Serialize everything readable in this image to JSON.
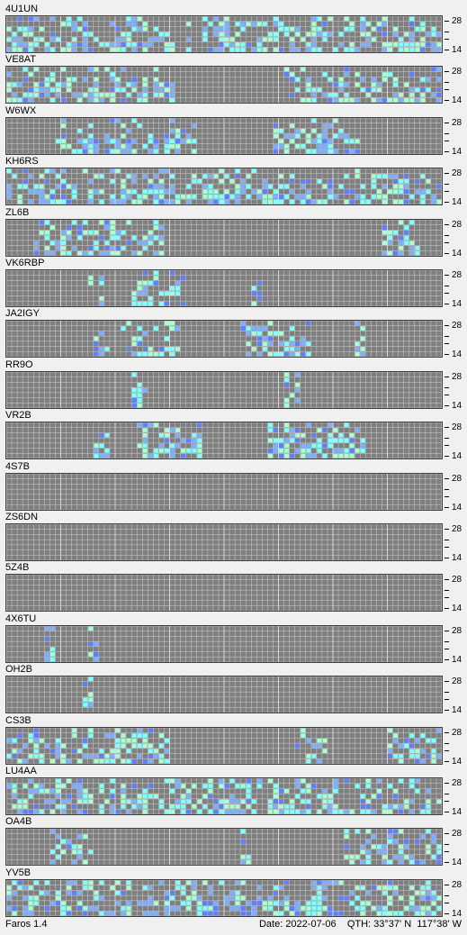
{
  "status": {
    "app_version": "Faros 1.4",
    "date_label": "Date:",
    "date": "2022-07-06",
    "qth_label": "QTH:",
    "lat": "33°37' N",
    "lon": "117°38' W"
  },
  "axis": {
    "top_label": "28",
    "bottom_label": "14"
  },
  "colors": {
    "grid_bg": "#7f7f7f",
    "cell_empty": "#9a9a9a",
    "grid_line": "#cfcfcf",
    "hour_line": "#d8d8d8",
    "weak": "#7fb0ff",
    "medium": "#80ffff",
    "strong": "#a8ffd0",
    "dim": "#5f7fff"
  },
  "beacons": [
    {
      "callsign": "4U1UN",
      "activity": [
        [
          0,
          1,
          2,
          3,
          4,
          5,
          6,
          7,
          8,
          9,
          10,
          11,
          12,
          13,
          14,
          15,
          16,
          17,
          18,
          19,
          20,
          21,
          22,
          23,
          24,
          25,
          26,
          27,
          28,
          29,
          30,
          33,
          36,
          37,
          38,
          39,
          40,
          41,
          42,
          43,
          44,
          45,
          46,
          47,
          48,
          49,
          50,
          51,
          52,
          53,
          54,
          55,
          56,
          57,
          58,
          59,
          60,
          61,
          62,
          63,
          64,
          65,
          66,
          67,
          68,
          69,
          70,
          71,
          72,
          73,
          74,
          75,
          76,
          77,
          78,
          79
        ],
        [
          0,
          1,
          2,
          5,
          6,
          7,
          8,
          9,
          10,
          11,
          12,
          13,
          14,
          15,
          16,
          17,
          18,
          19,
          20,
          21,
          22,
          23,
          24,
          25,
          26,
          27,
          28,
          29,
          30,
          31,
          37,
          38,
          39,
          40,
          42,
          43,
          44,
          45,
          46,
          47,
          48,
          49,
          50,
          51,
          52,
          53,
          54,
          55,
          56,
          57,
          58,
          59,
          60,
          61,
          62,
          63,
          64,
          65,
          66,
          67,
          68,
          69,
          70,
          71,
          72,
          73,
          74,
          75,
          76,
          77,
          78,
          79
        ]
      ]
    },
    {
      "callsign": "VE8AT",
      "activity": [
        [
          0,
          1,
          2,
          3,
          4,
          5,
          6,
          7,
          8,
          9,
          10,
          11,
          12,
          13,
          14,
          15,
          16,
          17,
          18,
          19,
          20,
          21,
          22,
          23,
          24,
          25,
          26,
          27,
          28,
          29,
          30,
          51,
          52,
          53,
          54,
          55,
          56,
          57,
          58,
          59,
          60,
          61,
          62,
          63,
          64,
          65,
          66,
          67,
          68,
          69,
          70,
          71,
          72,
          73,
          74,
          75,
          76,
          77,
          78,
          79
        ],
        []
      ]
    },
    {
      "callsign": "W6WX",
      "activity": [
        [
          9,
          10,
          11,
          12,
          13,
          14,
          15,
          16,
          18,
          19,
          20,
          21,
          22,
          23,
          24,
          25,
          26,
          27,
          28,
          29,
          30,
          31,
          32,
          33,
          34,
          49,
          50,
          51,
          52,
          53,
          54,
          55,
          56,
          57,
          58,
          59,
          60,
          61,
          62,
          63,
          64
        ],
        []
      ]
    },
    {
      "callsign": "KH6RS",
      "activity": [
        [
          0,
          1,
          2,
          3,
          4,
          5,
          6,
          7,
          8,
          9,
          10,
          11,
          12,
          13,
          14,
          15,
          16,
          17,
          18,
          19,
          20,
          21,
          22,
          23,
          24,
          25,
          26,
          27,
          28,
          29,
          30,
          31,
          32,
          33,
          34,
          35,
          36,
          37,
          38,
          39,
          40,
          41,
          42,
          43,
          44,
          45,
          46,
          47,
          48,
          49,
          50,
          51,
          52,
          53,
          54,
          55,
          56,
          57,
          58,
          59,
          60,
          61,
          62,
          63,
          64,
          65,
          66,
          67,
          68,
          69,
          70,
          71,
          72,
          73,
          74,
          75,
          76,
          77,
          78,
          79
        ],
        []
      ]
    },
    {
      "callsign": "ZL6B",
      "activity": [
        [
          5,
          6,
          7,
          8,
          9,
          10,
          11,
          12,
          13,
          14,
          15,
          16,
          17,
          18,
          19,
          20,
          21,
          22,
          23,
          24,
          25,
          26,
          27,
          28,
          69,
          70,
          71,
          72,
          73,
          74,
          75
        ],
        []
      ]
    },
    {
      "callsign": "VK6RBP",
      "activity": [
        [
          15,
          16,
          17,
          23,
          24,
          25,
          26,
          27,
          28,
          29,
          30,
          31,
          32,
          45,
          46
        ],
        []
      ]
    },
    {
      "callsign": "JA2IGY",
      "activity": [
        [
          16,
          17,
          18,
          21,
          22,
          23,
          24,
          25,
          26,
          27,
          28,
          29,
          30,
          31,
          43,
          44,
          45,
          46,
          47,
          48,
          49,
          50,
          51,
          52,
          53,
          54,
          55,
          64,
          65
        ],
        []
      ]
    },
    {
      "callsign": "RR9O",
      "activity": [
        [
          23,
          24,
          25,
          51,
          52,
          53
        ],
        []
      ]
    },
    {
      "callsign": "VR2B",
      "activity": [
        [
          16,
          17,
          18,
          24,
          25,
          26,
          27,
          28,
          29,
          30,
          31,
          32,
          33,
          34,
          35,
          48,
          49,
          50,
          51,
          52,
          53,
          54,
          55,
          56,
          57,
          58,
          59,
          60,
          61,
          62,
          63,
          64,
          65
        ],
        []
      ]
    },
    {
      "callsign": "4S7B",
      "activity": [
        [],
        []
      ]
    },
    {
      "callsign": "ZS6DN",
      "activity": [
        [],
        []
      ]
    },
    {
      "callsign": "5Z4B",
      "activity": [
        [],
        []
      ]
    },
    {
      "callsign": "4X6TU",
      "activity": [
        [
          7,
          8,
          15,
          16
        ],
        []
      ]
    },
    {
      "callsign": "OH2B",
      "activity": [
        [
          14,
          15
        ],
        []
      ]
    },
    {
      "callsign": "CS3B",
      "activity": [
        [
          0,
          1,
          2,
          3,
          4,
          5,
          6,
          7,
          8,
          9,
          10,
          11,
          12,
          13,
          14,
          15,
          16,
          17,
          18,
          19,
          20,
          21,
          22,
          23,
          24,
          25,
          26,
          27,
          28,
          29,
          53,
          54,
          55,
          56,
          57,
          58,
          70,
          71,
          72,
          73,
          74,
          75,
          76,
          77,
          78,
          79
        ],
        []
      ]
    },
    {
      "callsign": "LU4AA",
      "activity": [
        [
          0,
          1,
          2,
          3,
          4,
          5,
          6,
          7,
          8,
          9,
          10,
          11,
          12,
          13,
          14,
          15,
          16,
          17,
          18,
          19,
          20,
          21,
          22,
          23,
          24,
          25,
          26,
          27,
          28,
          29,
          30,
          31,
          32,
          33,
          34,
          35,
          36,
          37,
          38,
          39,
          40,
          41,
          42,
          43,
          44,
          45,
          46,
          47,
          48,
          49,
          50,
          51,
          52,
          53,
          54,
          55,
          56,
          57,
          58,
          59,
          60,
          61,
          62,
          63,
          64,
          65,
          66,
          67,
          68,
          69,
          70,
          71,
          72,
          73,
          74,
          75,
          76,
          77,
          78,
          79
        ],
        []
      ]
    },
    {
      "callsign": "OA4B",
      "activity": [
        [
          8,
          9,
          10,
          11,
          12,
          13,
          14,
          15,
          43,
          44,
          62,
          63,
          64,
          65,
          66,
          67,
          68,
          69,
          70,
          71,
          72,
          73,
          74,
          75,
          76,
          77,
          78,
          79
        ],
        []
      ]
    },
    {
      "callsign": "YV5B",
      "activity": [
        [
          0,
          1,
          2,
          3,
          4,
          5,
          6,
          7,
          8,
          9,
          10,
          11,
          12,
          13,
          14,
          15,
          16,
          17,
          18,
          19,
          20,
          21,
          22,
          23,
          24,
          25,
          26,
          27,
          28,
          29,
          30,
          31,
          32,
          33,
          34,
          35,
          36,
          37,
          38,
          39,
          40,
          41,
          42,
          43,
          44,
          45,
          46,
          47,
          48,
          49,
          50,
          51,
          52,
          53,
          54,
          55,
          56,
          57,
          58,
          59,
          60,
          61,
          62,
          63,
          64,
          65,
          66,
          67,
          68,
          69,
          70,
          71,
          72,
          73,
          74,
          75,
          76,
          77,
          78,
          79
        ],
        []
      ]
    }
  ]
}
